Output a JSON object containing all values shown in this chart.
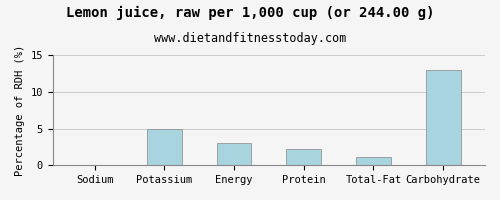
{
  "title": "Lemon juice, raw per 1,000 cup (or 244.00 g)",
  "subtitle": "www.dietandfitnesstoday.com",
  "categories": [
    "Sodium",
    "Potassium",
    "Energy",
    "Protein",
    "Total-Fat",
    "Carbohydrate"
  ],
  "values": [
    0.0,
    5.0,
    3.0,
    2.2,
    1.1,
    13.0
  ],
  "bar_color": "#a8d4e0",
  "ylabel": "Percentage of RDH (%)",
  "ylim": [
    0,
    15
  ],
  "yticks": [
    0,
    5,
    10,
    15
  ],
  "background_color": "#f5f5f5",
  "title_fontsize": 10,
  "subtitle_fontsize": 8.5,
  "ylabel_fontsize": 7.5,
  "xlabel_fontsize": 7.5
}
